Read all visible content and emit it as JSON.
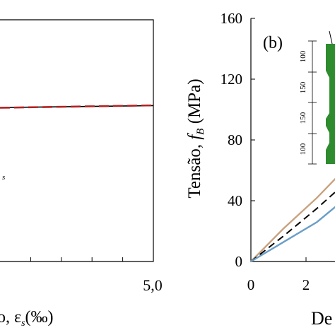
{
  "chart_data": [
    {
      "type": "line",
      "panel": "a",
      "xlabel_visible": "o,  ε",
      "xlabel_sub": "s",
      "xlabel_unit": "(‰)",
      "x_tick_labels": [
        "5,0"
      ],
      "xlim": [
        0,
        5
      ],
      "ylim": [
        0,
        1
      ],
      "grid": false,
      "series": [
        {
          "style": "solid",
          "color": "#000000",
          "x": [
            0,
            5
          ],
          "y": [
            0.637,
            0.645
          ]
        },
        {
          "style": "dashed",
          "color": "#b22222",
          "x": [
            0,
            5
          ],
          "y": [
            0.636,
            0.646
          ]
        }
      ],
      "annotation": "s"
    },
    {
      "type": "line",
      "panel": "b",
      "panel_label": "(b)",
      "ylabel": "Tensão, ",
      "ylabel_symbol": "f",
      "ylabel_sub": "B",
      "ylabel_unit": " (MPa)",
      "xlabel_visible": "De",
      "y_ticks": [
        "0",
        "40",
        "80",
        "120",
        "160"
      ],
      "x_ticks": [
        "0",
        "2"
      ],
      "ylim": [
        0,
        160
      ],
      "xlim": [
        0,
        3.2
      ],
      "grid": false,
      "series": [
        {
          "style": "solid",
          "color": "#c8a27e",
          "x": [
            0,
            1.2,
            2.4,
            3.2
          ],
          "y": [
            0,
            22,
            42,
            57
          ]
        },
        {
          "style": "dashed",
          "color": "#000000",
          "x": [
            0,
            1.2,
            2.4,
            3.2
          ],
          "y": [
            0,
            17,
            35,
            48
          ]
        },
        {
          "style": "solid",
          "color": "#6a9ec8",
          "x": [
            0,
            1.2,
            2.4,
            3.2
          ],
          "y": [
            0,
            13,
            26,
            38
          ]
        }
      ],
      "inset": {
        "dimension_labels": [
          "100",
          "150",
          "150",
          "100"
        ],
        "specimen_color": "#2e8b2e"
      }
    }
  ]
}
